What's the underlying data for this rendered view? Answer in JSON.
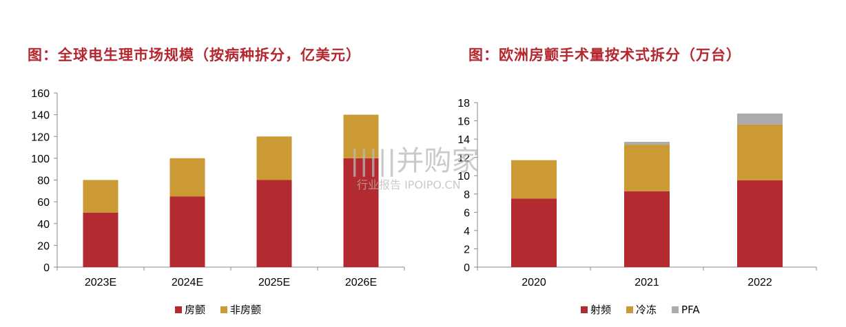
{
  "watermark": {
    "main": "|||||并购家",
    "sub": "行业报告 IPOIPO.CN"
  },
  "colors": {
    "red": "#b32a30",
    "gold": "#cc9a35",
    "gray": "#ababab"
  },
  "chart_data": [
    {
      "type": "bar",
      "stacked": true,
      "title": "图：全球电生理市场规模（按病种拆分，亿美元）",
      "xlabel": "",
      "ylabel": "",
      "categories": [
        "2023E",
        "2024E",
        "2025E",
        "2026E"
      ],
      "series": [
        {
          "name": "房颤",
          "color": "#b32a30",
          "values": [
            50,
            65,
            80,
            100
          ]
        },
        {
          "name": "非房颤",
          "color": "#cc9a35",
          "values": [
            30,
            35,
            40,
            40
          ]
        }
      ],
      "ylim": [
        0,
        160
      ],
      "yticks": [
        "0",
        "20",
        "40",
        "60",
        "80",
        "100",
        "120",
        "140",
        "160"
      ],
      "grid": false,
      "legend": "bottom"
    },
    {
      "type": "bar",
      "stacked": true,
      "title": "图：欧洲房颤手术量按术式拆分（万台）",
      "xlabel": "",
      "ylabel": "",
      "categories": [
        "2020",
        "2021",
        "2022"
      ],
      "series": [
        {
          "name": "射频",
          "color": "#b32a30",
          "values": [
            7.5,
            8.3,
            9.5
          ]
        },
        {
          "name": "冷冻",
          "color": "#cc9a35",
          "values": [
            4.2,
            5.1,
            6.1
          ]
        },
        {
          "name": "PFA",
          "color": "#ababab",
          "values": [
            0,
            0.3,
            1.2
          ]
        }
      ],
      "ylim": [
        0,
        18
      ],
      "yticks": [
        "0",
        "2",
        "4",
        "6",
        "8",
        "10",
        "12",
        "14",
        "16",
        "18"
      ],
      "grid": false,
      "legend": "bottom"
    }
  ]
}
